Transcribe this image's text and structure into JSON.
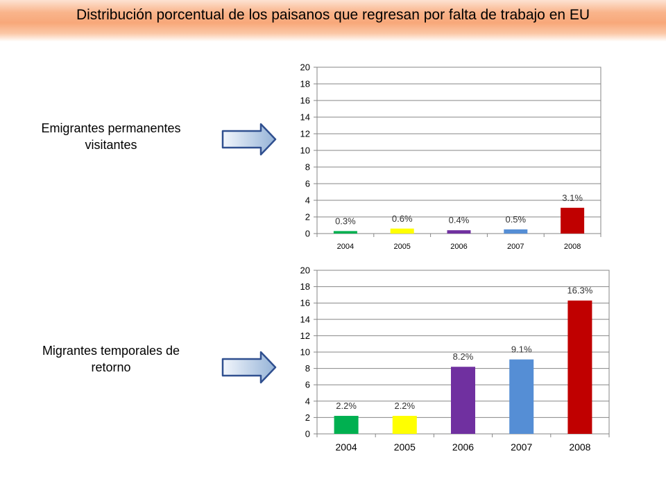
{
  "title": "Distribución porcentual de los paisanos que regresan por falta de trabajo en EU",
  "labels": {
    "top": [
      "Emigrantes permanentes",
      "visitantes"
    ],
    "bottom": [
      "Migrantes temporales de",
      "retorno"
    ]
  },
  "chart_data": [
    {
      "type": "bar",
      "categories": [
        "2004",
        "2005",
        "2006",
        "2007",
        "2008"
      ],
      "values": [
        0.3,
        0.6,
        0.4,
        0.5,
        3.1
      ],
      "data_labels": [
        "0.3%",
        "0.6%",
        "0.4%",
        "0.5%",
        "3.1%"
      ],
      "colors": [
        "#00b050",
        "#ffff00",
        "#7030a0",
        "#558ed5",
        "#c00000"
      ],
      "y_ticks": [
        "0",
        "2",
        "4",
        "6",
        "8",
        "10",
        "12",
        "14",
        "16",
        "18",
        "20"
      ],
      "ylim": [
        0,
        20
      ],
      "grid": true,
      "legend": "none"
    },
    {
      "type": "bar",
      "categories": [
        "2004",
        "2005",
        "2006",
        "2007",
        "2008"
      ],
      "values": [
        2.2,
        2.2,
        8.2,
        9.1,
        16.3
      ],
      "data_labels": [
        "2.2%",
        "2.2%",
        "8.2%",
        "9.1%",
        "16.3%"
      ],
      "colors": [
        "#00b050",
        "#ffff00",
        "#7030a0",
        "#558ed5",
        "#c00000"
      ],
      "y_ticks": [
        "0",
        "2",
        "4",
        "6",
        "8",
        "10",
        "12",
        "14",
        "16",
        "18",
        "20"
      ],
      "ylim": [
        0,
        20
      ],
      "grid": true,
      "legend": "none"
    }
  ]
}
